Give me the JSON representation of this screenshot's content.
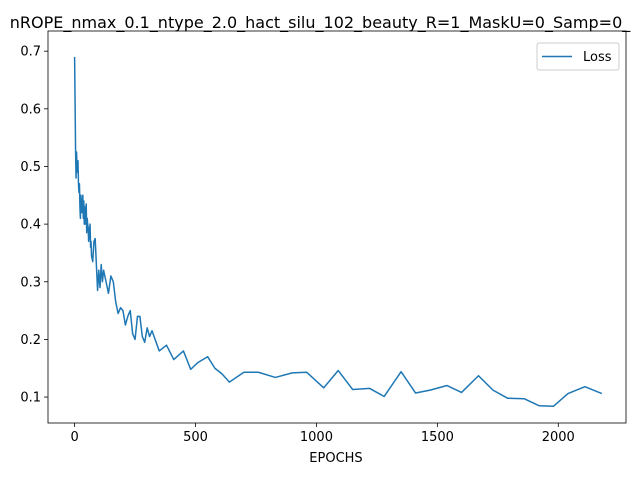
{
  "chart_data": {
    "type": "line",
    "title": "nROPE_nmax_0.1_ntype_2.0_hact_silu_102_beauty_R=1_MaskU=0_Samp=0_",
    "xlabel": "EPOCHS",
    "ylabel": "",
    "xlim": [
      -110,
      2280
    ],
    "ylim": [
      0.055,
      0.735
    ],
    "xticks": [
      0,
      500,
      1000,
      1500,
      2000
    ],
    "yticks": [
      0.1,
      0.2,
      0.3,
      0.4,
      0.5,
      0.6,
      0.7
    ],
    "ytick_labels": [
      "0.1",
      "0.2",
      "0.3",
      "0.4",
      "0.5",
      "0.6",
      "0.7"
    ],
    "grid": false,
    "legend_position": "upper right",
    "series": [
      {
        "name": "Loss",
        "color": "#1f77b4",
        "x": [
          0,
          2,
          4,
          6,
          8,
          10,
          12,
          14,
          16,
          18,
          20,
          22,
          24,
          26,
          28,
          30,
          32,
          34,
          36,
          38,
          40,
          42,
          44,
          46,
          48,
          50,
          52,
          54,
          56,
          58,
          60,
          62,
          64,
          66,
          68,
          70,
          75,
          80,
          85,
          90,
          95,
          100,
          105,
          110,
          115,
          120,
          125,
          130,
          140,
          150,
          160,
          170,
          180,
          190,
          200,
          210,
          220,
          230,
          240,
          250,
          260,
          270,
          280,
          290,
          300,
          310,
          320,
          350,
          380,
          410,
          450,
          480,
          510,
          550,
          580,
          610,
          640,
          700,
          760,
          830,
          900,
          960,
          1030,
          1090,
          1150,
          1220,
          1280,
          1350,
          1410,
          1470,
          1540,
          1600,
          1670,
          1730,
          1790,
          1860,
          1920,
          1980,
          2040,
          2110,
          2180
        ],
        "y": [
          0.69,
          0.61,
          0.53,
          0.48,
          0.525,
          0.5,
          0.49,
          0.51,
          0.47,
          0.455,
          0.47,
          0.43,
          0.41,
          0.45,
          0.44,
          0.42,
          0.43,
          0.45,
          0.41,
          0.44,
          0.4,
          0.43,
          0.4,
          0.42,
          0.435,
          0.385,
          0.41,
          0.4,
          0.395,
          0.37,
          0.38,
          0.39,
          0.4,
          0.36,
          0.37,
          0.345,
          0.335,
          0.37,
          0.375,
          0.33,
          0.285,
          0.32,
          0.29,
          0.33,
          0.3,
          0.32,
          0.31,
          0.3,
          0.28,
          0.31,
          0.3,
          0.265,
          0.245,
          0.255,
          0.25,
          0.225,
          0.24,
          0.25,
          0.21,
          0.2,
          0.24,
          0.24,
          0.205,
          0.195,
          0.22,
          0.205,
          0.215,
          0.18,
          0.19,
          0.165,
          0.18,
          0.148,
          0.16,
          0.17,
          0.15,
          0.14,
          0.126,
          0.143,
          0.143,
          0.134,
          0.142,
          0.143,
          0.116,
          0.146,
          0.113,
          0.115,
          0.101,
          0.144,
          0.107,
          0.112,
          0.12,
          0.108,
          0.137,
          0.112,
          0.098,
          0.097,
          0.085,
          0.084,
          0.106,
          0.118,
          0.106
        ]
      }
    ]
  }
}
